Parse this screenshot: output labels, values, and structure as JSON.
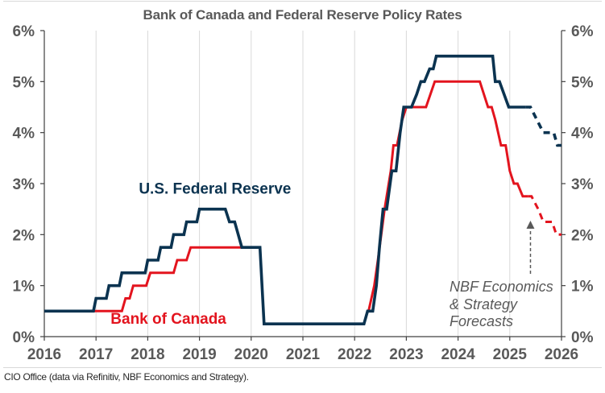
{
  "page": {
    "title": "Bank of Canada and Federal Reserve Policy Rates",
    "footer": "CIO Office (data via Refinitiv, NBF Economics and Strategy)."
  },
  "chart_data": {
    "type": "line",
    "title": "Bank of Canada and Federal Reserve Policy Rates",
    "xlabel": "",
    "ylabel": "",
    "xlim": [
      2016,
      2026
    ],
    "ylim": [
      0,
      6
    ],
    "x_ticks": [
      "2016",
      "2017",
      "2018",
      "2019",
      "2020",
      "2021",
      "2022",
      "2023",
      "2024",
      "2025",
      "2026"
    ],
    "y_ticks_left": [
      "0%",
      "1%",
      "2%",
      "3%",
      "4%",
      "5%",
      "6%"
    ],
    "y_ticks_right": [
      "0%",
      "1%",
      "2%",
      "3%",
      "4%",
      "5%",
      "6%"
    ],
    "grid": "vertical lines at each year",
    "colors": {
      "fed": "#0b3350",
      "boc": "#e3141e",
      "axis": "#404040",
      "grid": "#d9d9d9",
      "text": "#595959"
    },
    "series": [
      {
        "name": "U.S. Federal Reserve",
        "label": "U.S. Federal Reserve",
        "color": "#0b3350",
        "style": "solid",
        "points": [
          [
            2016.0,
            0.5
          ],
          [
            2016.95,
            0.5
          ],
          [
            2017.0,
            0.75
          ],
          [
            2017.2,
            0.75
          ],
          [
            2017.25,
            1.0
          ],
          [
            2017.45,
            1.0
          ],
          [
            2017.5,
            1.25
          ],
          [
            2017.95,
            1.25
          ],
          [
            2018.0,
            1.5
          ],
          [
            2018.2,
            1.5
          ],
          [
            2018.25,
            1.75
          ],
          [
            2018.45,
            1.75
          ],
          [
            2018.5,
            2.0
          ],
          [
            2018.7,
            2.0
          ],
          [
            2018.75,
            2.25
          ],
          [
            2018.95,
            2.25
          ],
          [
            2019.0,
            2.5
          ],
          [
            2019.5,
            2.5
          ],
          [
            2019.58,
            2.25
          ],
          [
            2019.68,
            2.25
          ],
          [
            2019.82,
            1.75
          ],
          [
            2020.17,
            1.75
          ],
          [
            2020.25,
            0.25
          ],
          [
            2022.18,
            0.25
          ],
          [
            2022.25,
            0.5
          ],
          [
            2022.35,
            0.5
          ],
          [
            2022.42,
            1.0
          ],
          [
            2022.48,
            1.75
          ],
          [
            2022.55,
            2.5
          ],
          [
            2022.62,
            2.5
          ],
          [
            2022.72,
            3.25
          ],
          [
            2022.8,
            3.25
          ],
          [
            2022.88,
            4.0
          ],
          [
            2022.95,
            4.5
          ],
          [
            2023.1,
            4.5
          ],
          [
            2023.2,
            4.75
          ],
          [
            2023.28,
            5.0
          ],
          [
            2023.35,
            5.0
          ],
          [
            2023.45,
            5.25
          ],
          [
            2023.52,
            5.25
          ],
          [
            2023.58,
            5.5
          ],
          [
            2024.67,
            5.5
          ],
          [
            2024.72,
            5.0
          ],
          [
            2024.8,
            5.0
          ],
          [
            2024.98,
            4.5
          ],
          [
            2025.3,
            4.5
          ]
        ]
      },
      {
        "name": "U.S. Federal Reserve (forecast)",
        "color": "#0b3350",
        "style": "dashed",
        "points": [
          [
            2025.3,
            4.5
          ],
          [
            2025.4,
            4.5
          ],
          [
            2025.65,
            4.0
          ],
          [
            2025.85,
            4.0
          ],
          [
            2025.92,
            3.75
          ],
          [
            2026.0,
            3.75
          ]
        ]
      },
      {
        "name": "Bank of Canada",
        "label": "Bank of Canada",
        "color": "#e3141e",
        "style": "solid",
        "points": [
          [
            2016.95,
            0.5
          ],
          [
            2017.5,
            0.5
          ],
          [
            2017.57,
            0.75
          ],
          [
            2017.65,
            0.75
          ],
          [
            2017.72,
            1.0
          ],
          [
            2017.97,
            1.0
          ],
          [
            2018.05,
            1.25
          ],
          [
            2018.5,
            1.25
          ],
          [
            2018.57,
            1.5
          ],
          [
            2018.75,
            1.5
          ],
          [
            2018.83,
            1.75
          ],
          [
            2019.8,
            1.75
          ]
        ]
      },
      {
        "name": "Bank of Canada (2022-2025)",
        "color": "#e3141e",
        "style": "solid",
        "points": [
          [
            2022.27,
            0.5
          ],
          [
            2022.38,
            1.0
          ],
          [
            2022.45,
            1.5
          ],
          [
            2022.58,
            2.5
          ],
          [
            2022.7,
            3.25
          ],
          [
            2022.75,
            3.75
          ],
          [
            2022.82,
            3.75
          ],
          [
            2022.92,
            4.25
          ],
          [
            2023.0,
            4.5
          ],
          [
            2023.38,
            4.5
          ],
          [
            2023.55,
            5.0
          ],
          [
            2024.42,
            5.0
          ],
          [
            2024.58,
            4.5
          ],
          [
            2024.65,
            4.5
          ],
          [
            2024.72,
            4.25
          ],
          [
            2024.83,
            3.75
          ],
          [
            2024.92,
            3.75
          ],
          [
            2025.0,
            3.25
          ],
          [
            2025.08,
            3.0
          ],
          [
            2025.15,
            3.0
          ],
          [
            2025.25,
            2.75
          ],
          [
            2025.35,
            2.75
          ]
        ]
      },
      {
        "name": "Bank of Canada (forecast)",
        "color": "#e3141e",
        "style": "dashed",
        "points": [
          [
            2025.35,
            2.75
          ],
          [
            2025.42,
            2.75
          ],
          [
            2025.55,
            2.5
          ],
          [
            2025.65,
            2.25
          ],
          [
            2025.82,
            2.25
          ],
          [
            2025.9,
            2.0
          ],
          [
            2026.0,
            2.0
          ]
        ]
      }
    ],
    "annotations": [
      {
        "text": "U.S. Federal Reserve",
        "x": 2019.3,
        "y": 2.8,
        "color": "#0b3350"
      },
      {
        "text": "Bank of Canada",
        "x": 2018.4,
        "y": 0.25,
        "color": "#e3141e"
      },
      {
        "text_lines": [
          "NBF Economics",
          "& Strategy",
          "Forecasts"
        ],
        "x": 2024.8,
        "y": 1.0,
        "arrow_to": [
          2025.4,
          2.25
        ]
      }
    ]
  }
}
